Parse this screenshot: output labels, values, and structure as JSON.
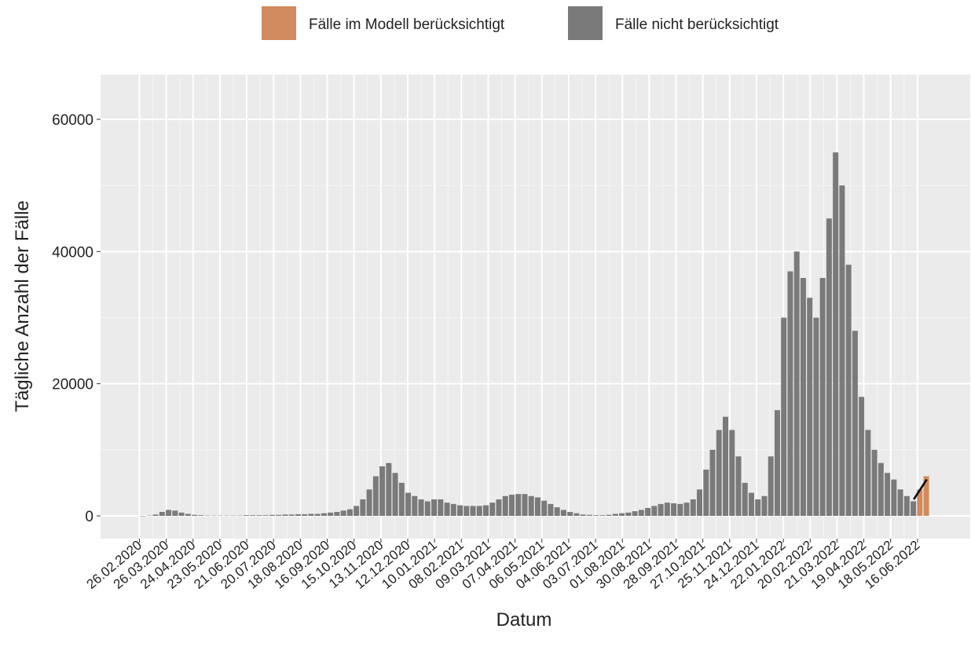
{
  "chart_data": {
    "type": "bar",
    "legend_position": "top",
    "x_label": "Datum",
    "y_label": "Tägliche Anzahl der Fälle",
    "x": [
      "2020-02-26",
      "2020-03-04",
      "2020-03-11",
      "2020-03-18",
      "2020-03-25",
      "2020-04-01",
      "2020-04-08",
      "2020-04-15",
      "2020-04-22",
      "2020-04-29",
      "2020-05-06",
      "2020-05-13",
      "2020-05-20",
      "2020-05-27",
      "2020-06-03",
      "2020-06-10",
      "2020-06-17",
      "2020-06-24",
      "2020-07-01",
      "2020-07-08",
      "2020-07-15",
      "2020-07-22",
      "2020-07-29",
      "2020-08-05",
      "2020-08-12",
      "2020-08-19",
      "2020-08-26",
      "2020-09-02",
      "2020-09-09",
      "2020-09-16",
      "2020-09-23",
      "2020-09-30",
      "2020-10-07",
      "2020-10-14",
      "2020-10-21",
      "2020-10-28",
      "2020-11-04",
      "2020-11-11",
      "2020-11-18",
      "2020-11-25",
      "2020-12-02",
      "2020-12-09",
      "2020-12-16",
      "2020-12-23",
      "2020-12-30",
      "2021-01-06",
      "2021-01-13",
      "2021-01-20",
      "2021-01-27",
      "2021-02-03",
      "2021-02-10",
      "2021-02-17",
      "2021-02-24",
      "2021-03-03",
      "2021-03-10",
      "2021-03-17",
      "2021-03-24",
      "2021-03-31",
      "2021-04-07",
      "2021-04-14",
      "2021-04-21",
      "2021-04-28",
      "2021-05-05",
      "2021-05-12",
      "2021-05-19",
      "2021-05-26",
      "2021-06-02",
      "2021-06-09",
      "2021-06-16",
      "2021-06-23",
      "2021-06-30",
      "2021-07-07",
      "2021-07-14",
      "2021-07-21",
      "2021-07-28",
      "2021-08-04",
      "2021-08-11",
      "2021-08-18",
      "2021-08-25",
      "2021-09-01",
      "2021-09-08",
      "2021-09-15",
      "2021-09-22",
      "2021-09-29",
      "2021-10-06",
      "2021-10-13",
      "2021-10-20",
      "2021-10-27",
      "2021-11-03",
      "2021-11-10",
      "2021-11-17",
      "2021-11-24",
      "2021-12-01",
      "2021-12-08",
      "2021-12-15",
      "2021-12-22",
      "2021-12-29",
      "2022-01-05",
      "2022-01-12",
      "2022-01-19",
      "2022-01-26",
      "2022-02-02",
      "2022-02-09",
      "2022-02-16",
      "2022-02-23",
      "2022-03-02",
      "2022-03-09",
      "2022-03-16",
      "2022-03-23",
      "2022-03-30",
      "2022-04-06",
      "2022-04-13",
      "2022-04-20",
      "2022-04-27",
      "2022-05-04",
      "2022-05-11",
      "2022-05-18",
      "2022-05-25",
      "2022-06-01",
      "2022-06-08",
      "2022-06-15",
      "2022-06-22"
    ],
    "series": [
      {
        "name": "Fälle im Modell berücksichtigt",
        "color": "#d28b5e",
        "values": [
          null,
          null,
          null,
          null,
          null,
          null,
          null,
          null,
          null,
          null,
          null,
          null,
          null,
          null,
          null,
          null,
          null,
          null,
          null,
          null,
          null,
          null,
          null,
          null,
          null,
          null,
          null,
          null,
          null,
          null,
          null,
          null,
          null,
          null,
          null,
          null,
          null,
          null,
          null,
          null,
          null,
          null,
          null,
          null,
          null,
          null,
          null,
          null,
          null,
          null,
          null,
          null,
          null,
          null,
          null,
          null,
          null,
          null,
          null,
          null,
          null,
          null,
          null,
          null,
          null,
          null,
          null,
          null,
          null,
          null,
          null,
          null,
          null,
          null,
          null,
          null,
          null,
          null,
          null,
          null,
          null,
          null,
          null,
          null,
          null,
          null,
          null,
          null,
          null,
          null,
          null,
          null,
          null,
          null,
          null,
          null,
          null,
          null,
          null,
          null,
          null,
          null,
          null,
          null,
          null,
          null,
          null,
          null,
          null,
          null,
          null,
          null,
          null,
          null,
          null,
          null,
          null,
          null,
          null,
          null,
          4000,
          6000
        ]
      },
      {
        "name": "Fälle nicht berücksichtigt",
        "color": "#7a7a7a",
        "values": [
          0,
          50,
          200,
          600,
          900,
          800,
          500,
          300,
          150,
          100,
          50,
          50,
          50,
          50,
          50,
          50,
          100,
          100,
          100,
          100,
          150,
          150,
          200,
          200,
          250,
          250,
          300,
          300,
          400,
          500,
          600,
          800,
          1000,
          1500,
          2500,
          4000,
          6000,
          7500,
          8000,
          6500,
          5000,
          3500,
          3000,
          2500,
          2200,
          2500,
          2500,
          2000,
          1800,
          1600,
          1500,
          1500,
          1500,
          1600,
          2000,
          2500,
          3000,
          3200,
          3300,
          3300,
          3000,
          2800,
          2300,
          1800,
          1300,
          900,
          600,
          400,
          200,
          150,
          100,
          100,
          150,
          300,
          400,
          500,
          700,
          900,
          1200,
          1500,
          1800,
          2000,
          1900,
          1800,
          2000,
          2500,
          4000,
          7000,
          10000,
          13000,
          15000,
          13000,
          9000,
          5000,
          3500,
          2500,
          3000,
          9000,
          16000,
          30000,
          37000,
          40000,
          36000,
          33000,
          30000,
          36000,
          45000,
          55000,
          50000,
          38000,
          28000,
          18000,
          13000,
          10000,
          8000,
          6500,
          5500,
          4000,
          3000,
          2200,
          null,
          null
        ]
      }
    ],
    "model_fit": {
      "color": "#000000",
      "x": [
        "2022-06-12",
        "2022-06-26"
      ],
      "values": [
        2500,
        5500
      ]
    },
    "xlim": [
      "2020-01-15",
      "2022-08-12"
    ],
    "xticks": [
      {
        "value": "2020-02-26",
        "label": "26.02.2020"
      },
      {
        "value": "2020-03-26",
        "label": "26.03.2020"
      },
      {
        "value": "2020-04-24",
        "label": "24.04.2020"
      },
      {
        "value": "2020-05-23",
        "label": "23.05.2020"
      },
      {
        "value": "2020-06-21",
        "label": "21.06.2020"
      },
      {
        "value": "2020-07-20",
        "label": "20.07.2020"
      },
      {
        "value": "2020-08-18",
        "label": "18.08.2020"
      },
      {
        "value": "2020-09-16",
        "label": "16.09.2020"
      },
      {
        "value": "2020-10-15",
        "label": "15.10.2020"
      },
      {
        "value": "2020-11-13",
        "label": "13.11.2020"
      },
      {
        "value": "2020-12-12",
        "label": "12.12.2020"
      },
      {
        "value": "2021-01-10",
        "label": "10.01.2021"
      },
      {
        "value": "2021-02-08",
        "label": "08.02.2021"
      },
      {
        "value": "2021-03-09",
        "label": "09.03.2021"
      },
      {
        "value": "2021-04-07",
        "label": "07.04.2021"
      },
      {
        "value": "2021-05-06",
        "label": "06.05.2021"
      },
      {
        "value": "2021-06-04",
        "label": "04.06.2021"
      },
      {
        "value": "2021-07-03",
        "label": "03.07.2021"
      },
      {
        "value": "2021-08-01",
        "label": "01.08.2021"
      },
      {
        "value": "2021-08-30",
        "label": "30.08.2021"
      },
      {
        "value": "2021-09-28",
        "label": "28.09.2021"
      },
      {
        "value": "2021-10-27",
        "label": "27.10.2021"
      },
      {
        "value": "2021-11-25",
        "label": "25.11.2021"
      },
      {
        "value": "2021-12-24",
        "label": "24.12.2021"
      },
      {
        "value": "2022-01-22",
        "label": "22.01.2022"
      },
      {
        "value": "2022-02-20",
        "label": "20.02.2022"
      },
      {
        "value": "2022-03-21",
        "label": "21.03.2022"
      },
      {
        "value": "2022-04-19",
        "label": "19.04.2022"
      },
      {
        "value": "2022-05-18",
        "label": "18.05.2022"
      },
      {
        "value": "2022-06-16",
        "label": "16.06.2022"
      }
    ],
    "ylim": [
      -3445,
      66772
    ],
    "yticks": [
      0,
      20000,
      40000,
      60000
    ],
    "grid": true
  }
}
